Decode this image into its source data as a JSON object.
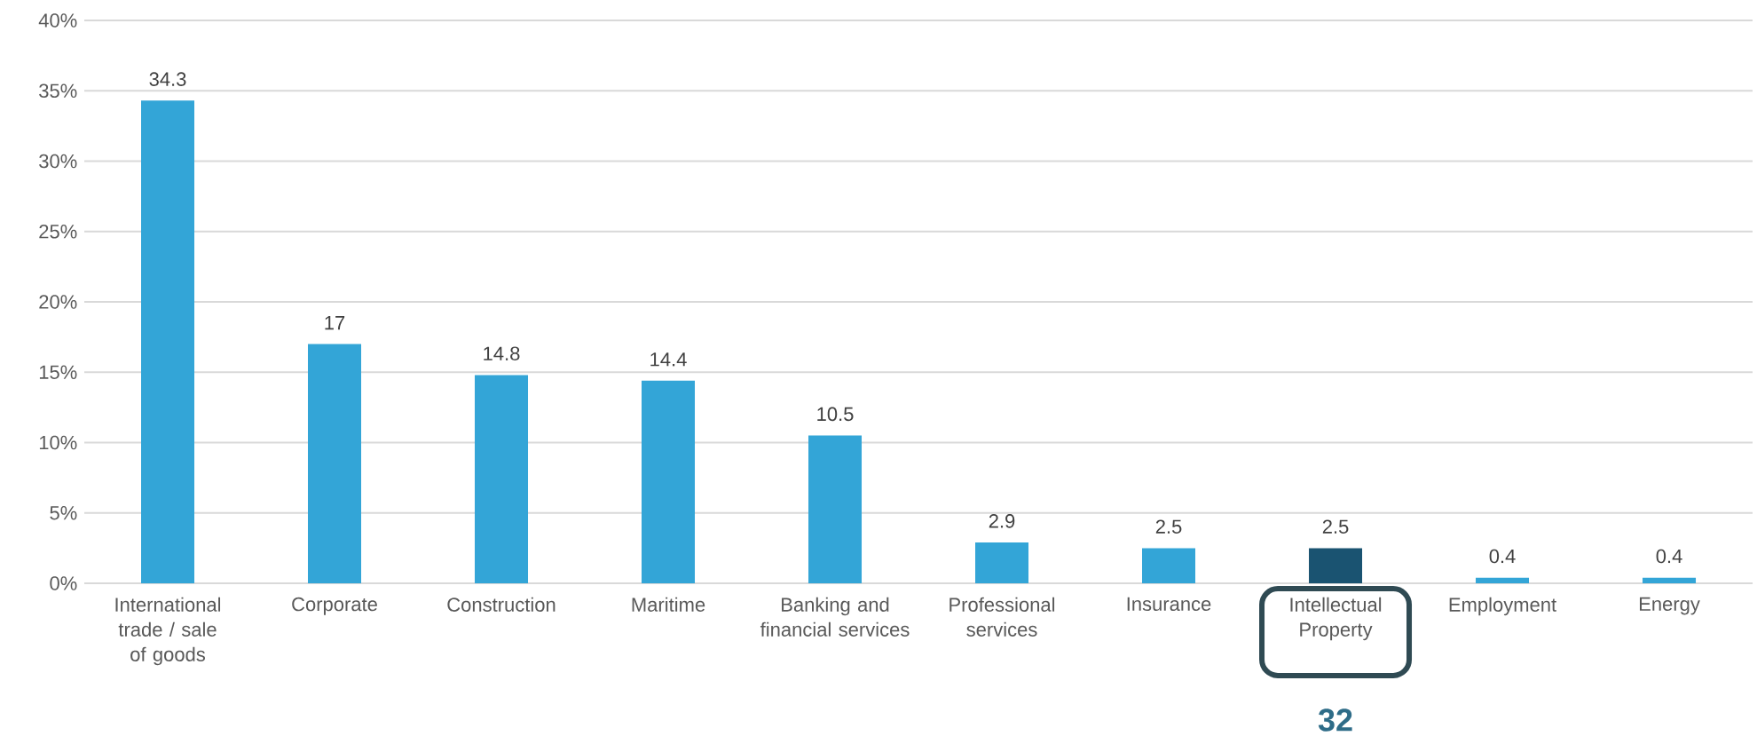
{
  "chart_data": {
    "type": "bar",
    "categories": [
      "International trade / sale of goods",
      "Corporate",
      "Construction",
      "Maritime",
      "Banking and financial services",
      "Professional services",
      "Insurance",
      "Intellectual Property",
      "Employment",
      "Energy"
    ],
    "values": [
      34.3,
      17,
      14.8,
      14.4,
      10.5,
      2.9,
      2.5,
      2.5,
      0.4,
      0.4
    ],
    "colors": [
      "#33a5d7",
      "#33a5d7",
      "#33a5d7",
      "#33a5d7",
      "#33a5d7",
      "#33a5d7",
      "#33a5d7",
      "#1a5371",
      "#33a5d7",
      "#33a5d7"
    ],
    "ylim": [
      0,
      40
    ],
    "yticks": [
      {
        "value": 0,
        "label": "0%"
      },
      {
        "value": 5,
        "label": "5%"
      },
      {
        "value": 10,
        "label": "10%"
      },
      {
        "value": 15,
        "label": "15%"
      },
      {
        "value": 20,
        "label": "20%"
      },
      {
        "value": 25,
        "label": "25%"
      },
      {
        "value": 30,
        "label": "30%"
      },
      {
        "value": 35,
        "label": "35%"
      },
      {
        "value": 40,
        "label": "40%"
      }
    ],
    "grid": "y",
    "data_labels": true,
    "annotations": [
      "32"
    ]
  }
}
